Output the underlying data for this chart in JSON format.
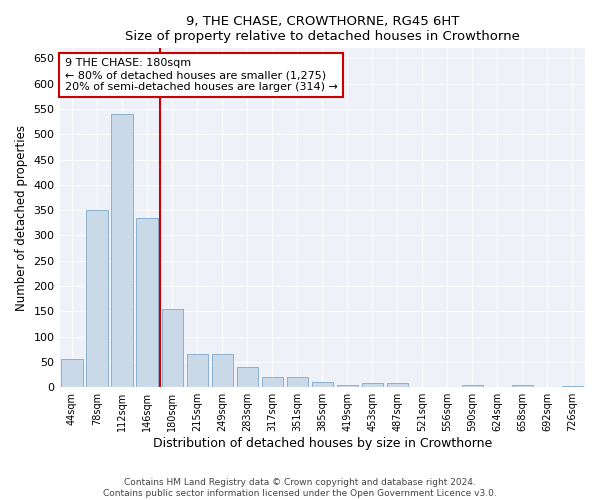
{
  "title": "9, THE CHASE, CROWTHORNE, RG45 6HT",
  "subtitle": "Size of property relative to detached houses in Crowthorne",
  "xlabel": "Distribution of detached houses by size in Crowthorne",
  "ylabel": "Number of detached properties",
  "categories": [
    "44sqm",
    "78sqm",
    "112sqm",
    "146sqm",
    "180sqm",
    "215sqm",
    "249sqm",
    "283sqm",
    "317sqm",
    "351sqm",
    "385sqm",
    "419sqm",
    "453sqm",
    "487sqm",
    "521sqm",
    "556sqm",
    "590sqm",
    "624sqm",
    "658sqm",
    "692sqm",
    "726sqm"
  ],
  "values": [
    55,
    350,
    540,
    335,
    155,
    65,
    65,
    40,
    20,
    20,
    10,
    5,
    8,
    8,
    0,
    0,
    4,
    0,
    4,
    0,
    3
  ],
  "bar_color": "#c9d9e8",
  "bar_edge_color": "#7fa8c9",
  "marker_line_index": 4,
  "marker_line_color": "#cc0000",
  "annotation_box_color": "#cc0000",
  "annotation_text": "9 THE CHASE: 180sqm\n← 80% of detached houses are smaller (1,275)\n20% of semi-detached houses are larger (314) →",
  "ylim": [
    0,
    670
  ],
  "yticks": [
    0,
    50,
    100,
    150,
    200,
    250,
    300,
    350,
    400,
    450,
    500,
    550,
    600,
    650
  ],
  "footer_line1": "Contains HM Land Registry data © Crown copyright and database right 2024.",
  "footer_line2": "Contains public sector information licensed under the Open Government Licence v3.0.",
  "background_color": "#eef2f8",
  "fig_bg_color": "#ffffff"
}
